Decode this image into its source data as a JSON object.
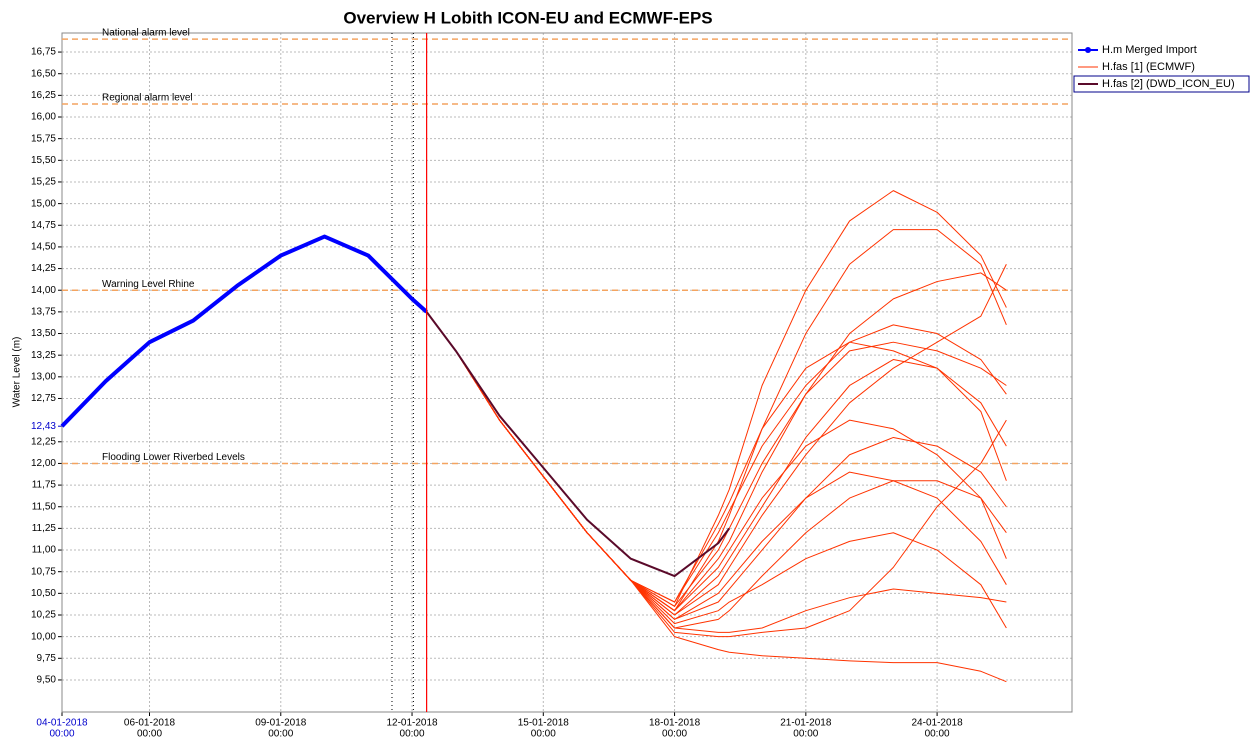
{
  "chart_data": {
    "type": "line",
    "title": "Overview H Lobith ICON-EU and ECMWF-EPS",
    "y_label": "Water Level (m)",
    "x": [
      "2018-01-04T00:00",
      "2018-01-05T00:00",
      "2018-01-06T00:00",
      "2018-01-07T00:00",
      "2018-01-08T00:00",
      "2018-01-09T00:00",
      "2018-01-10T00:00",
      "2018-01-11T00:00",
      "2018-01-12T00:00",
      "2018-01-12T08:00",
      "2018-01-13T00:00",
      "2018-01-14T00:00",
      "2018-01-15T00:00",
      "2018-01-16T00:00",
      "2018-01-17T00:00",
      "2018-01-18T00:00",
      "2018-01-19T00:00",
      "2018-01-19T06:00",
      "2018-01-20T00:00",
      "2018-01-21T00:00",
      "2018-01-22T00:00",
      "2018-01-23T00:00",
      "2018-01-24T00:00",
      "2018-01-25T00:00",
      "2018-01-25T14:00"
    ],
    "series": [
      {
        "name": "H.m Merged Import",
        "color": "#0000ff",
        "values": [
          12.43,
          12.95,
          13.4,
          13.65,
          14.05,
          14.4,
          14.62,
          14.4,
          13.9,
          13.75,
          null,
          null,
          null,
          null,
          null,
          null,
          null,
          null,
          null,
          null,
          null,
          null,
          null,
          null,
          null
        ]
      },
      {
        "name": "H.fas [1]  (ECMWF)",
        "color": "#ff3300",
        "members": [
          [
            null,
            null,
            null,
            null,
            null,
            null,
            null,
            null,
            null,
            13.75,
            13.3,
            12.5,
            11.85,
            11.2,
            10.65,
            10.3,
            10.9,
            11.1,
            11.9,
            12.8,
            13.3,
            13.4,
            13.3,
            13.1,
            12.9
          ],
          [
            null,
            null,
            null,
            null,
            null,
            null,
            null,
            null,
            null,
            13.75,
            13.3,
            12.5,
            11.85,
            11.2,
            10.65,
            10.35,
            11.4,
            11.7,
            12.9,
            14.0,
            14.8,
            15.15,
            14.9,
            14.4,
            13.8
          ],
          [
            null,
            null,
            null,
            null,
            null,
            null,
            null,
            null,
            null,
            13.75,
            13.3,
            12.5,
            11.85,
            11.2,
            10.65,
            10.3,
            11.1,
            11.4,
            12.4,
            13.5,
            14.3,
            14.7,
            14.7,
            14.3,
            13.6
          ],
          [
            null,
            null,
            null,
            null,
            null,
            null,
            null,
            null,
            null,
            13.75,
            13.3,
            12.5,
            11.85,
            11.2,
            10.65,
            10.0,
            9.85,
            9.82,
            9.78,
            9.75,
            9.72,
            9.7,
            9.7,
            9.6,
            9.48
          ],
          [
            null,
            null,
            null,
            null,
            null,
            null,
            null,
            null,
            null,
            13.75,
            13.3,
            12.5,
            11.85,
            11.2,
            10.65,
            10.1,
            10.05,
            10.05,
            10.1,
            10.3,
            10.45,
            10.55,
            10.5,
            10.45,
            10.4
          ],
          [
            null,
            null,
            null,
            null,
            null,
            null,
            null,
            null,
            null,
            13.75,
            13.3,
            12.5,
            11.85,
            11.2,
            10.65,
            10.2,
            10.4,
            10.55,
            11.0,
            11.6,
            12.1,
            12.3,
            12.2,
            11.9,
            11.5
          ],
          [
            null,
            null,
            null,
            null,
            null,
            null,
            null,
            null,
            null,
            13.75,
            13.3,
            12.5,
            11.85,
            11.2,
            10.65,
            10.4,
            11.2,
            11.45,
            12.2,
            12.9,
            13.4,
            13.6,
            13.5,
            13.2,
            12.8
          ],
          [
            null,
            null,
            null,
            null,
            null,
            null,
            null,
            null,
            null,
            13.75,
            13.3,
            12.5,
            11.85,
            11.2,
            10.65,
            10.1,
            10.2,
            10.3,
            10.7,
            11.2,
            11.6,
            11.8,
            11.8,
            11.6,
            11.2
          ],
          [
            null,
            null,
            null,
            null,
            null,
            null,
            null,
            null,
            null,
            13.75,
            13.3,
            12.5,
            11.85,
            11.2,
            10.65,
            10.25,
            10.6,
            10.8,
            11.4,
            12.1,
            12.7,
            13.1,
            13.4,
            13.7,
            14.3
          ],
          [
            null,
            null,
            null,
            null,
            null,
            null,
            null,
            null,
            null,
            13.75,
            13.3,
            12.5,
            11.85,
            11.2,
            10.65,
            10.05,
            10.0,
            10.0,
            10.05,
            10.1,
            10.3,
            10.8,
            11.5,
            12.0,
            12.5
          ],
          [
            null,
            null,
            null,
            null,
            null,
            null,
            null,
            null,
            null,
            13.75,
            13.3,
            12.5,
            11.85,
            11.2,
            10.65,
            10.3,
            10.8,
            11.0,
            11.6,
            12.2,
            12.5,
            12.4,
            12.1,
            11.6,
            10.9
          ],
          [
            null,
            null,
            null,
            null,
            null,
            null,
            null,
            null,
            null,
            13.75,
            13.3,
            12.5,
            11.85,
            11.2,
            10.65,
            10.15,
            10.3,
            10.4,
            10.6,
            10.9,
            11.1,
            11.2,
            11.0,
            10.6,
            10.1
          ],
          [
            null,
            null,
            null,
            null,
            null,
            null,
            null,
            null,
            null,
            13.75,
            13.3,
            12.5,
            11.85,
            11.2,
            10.65,
            10.35,
            11.0,
            11.25,
            12.0,
            12.8,
            13.5,
            13.9,
            14.1,
            14.2,
            14.0
          ],
          [
            null,
            null,
            null,
            null,
            null,
            null,
            null,
            null,
            null,
            13.75,
            13.3,
            12.5,
            11.85,
            11.2,
            10.65,
            10.2,
            10.5,
            10.65,
            11.1,
            11.6,
            11.9,
            11.8,
            11.6,
            11.1,
            10.6
          ],
          [
            null,
            null,
            null,
            null,
            null,
            null,
            null,
            null,
            null,
            13.75,
            13.3,
            12.5,
            11.85,
            11.2,
            10.65,
            10.4,
            11.3,
            11.55,
            12.4,
            13.1,
            13.4,
            13.3,
            13.1,
            12.7,
            12.2
          ],
          [
            null,
            null,
            null,
            null,
            null,
            null,
            null,
            null,
            null,
            13.75,
            13.3,
            12.5,
            11.85,
            11.2,
            10.65,
            10.25,
            10.7,
            10.9,
            11.5,
            12.3,
            12.9,
            13.2,
            13.1,
            12.6,
            11.8
          ]
        ]
      },
      {
        "name": "H.fas [2] (DWD_ICON_EU)",
        "color": "#5a0a2a",
        "values": [
          null,
          null,
          null,
          null,
          null,
          null,
          null,
          null,
          null,
          13.75,
          13.3,
          12.55,
          11.95,
          11.35,
          10.9,
          10.7,
          11.08,
          11.25,
          null,
          null,
          null,
          null,
          null,
          null,
          null
        ]
      }
    ],
    "xlim": [
      "2018-01-04T00:00",
      "2018-01-27T02:00"
    ],
    "xticks": [
      {
        "value": "2018-01-04T00:00",
        "label": "04-01-2018",
        "time": "00:00"
      },
      {
        "value": "2018-01-06T00:00",
        "label": "06-01-2018",
        "time": "00:00"
      },
      {
        "value": "2018-01-09T00:00",
        "label": "09-01-2018",
        "time": "00:00"
      },
      {
        "value": "2018-01-12T00:00",
        "label": "12-01-2018",
        "time": "00:00"
      },
      {
        "value": "2018-01-15T00:00",
        "label": "15-01-2018",
        "time": "00:00"
      },
      {
        "value": "2018-01-18T00:00",
        "label": "18-01-2018",
        "time": "00:00"
      },
      {
        "value": "2018-01-21T00:00",
        "label": "21-01-2018",
        "time": "00:00"
      },
      {
        "value": "2018-01-24T00:00",
        "label": "24-01-2018",
        "time": "00:00"
      }
    ],
    "ylim": [
      9.13,
      16.97
    ],
    "yticks": [
      {
        "value": 9.5,
        "label": "9,50"
      },
      {
        "value": 9.75,
        "label": "9,75"
      },
      {
        "value": 10,
        "label": "10,00"
      },
      {
        "value": 10.25,
        "label": "10,25"
      },
      {
        "value": 10.5,
        "label": "10,50"
      },
      {
        "value": 10.75,
        "label": "10,75"
      },
      {
        "value": 11,
        "label": "11,00"
      },
      {
        "value": 11.25,
        "label": "11,25"
      },
      {
        "value": 11.5,
        "label": "11,50"
      },
      {
        "value": 11.75,
        "label": "11,75"
      },
      {
        "value": 12,
        "label": "12,00"
      },
      {
        "value": 12.25,
        "label": "12,25"
      },
      {
        "value": 12.75,
        "label": "12,75"
      },
      {
        "value": 13,
        "label": "13,00"
      },
      {
        "value": 13.25,
        "label": "13,25"
      },
      {
        "value": 13.5,
        "label": "13,50"
      },
      {
        "value": 13.75,
        "label": "13,75"
      },
      {
        "value": 14,
        "label": "14,00"
      },
      {
        "value": 14.25,
        "label": "14,25"
      },
      {
        "value": 14.5,
        "label": "14,50"
      },
      {
        "value": 14.75,
        "label": "14,75"
      },
      {
        "value": 15,
        "label": "15,00"
      },
      {
        "value": 15.25,
        "label": "15,25"
      },
      {
        "value": 15.5,
        "label": "15,50"
      },
      {
        "value": 15.75,
        "label": "15,75"
      },
      {
        "value": 16,
        "label": "16,00"
      },
      {
        "value": 16.25,
        "label": "16,25"
      },
      {
        "value": 16.5,
        "label": "16,50"
      },
      {
        "value": 16.75,
        "label": "16,75"
      }
    ],
    "current_value": {
      "value": 12.43,
      "label": "12,43",
      "color": "#0000cc"
    },
    "thresholds": [
      {
        "label": "National alarm level",
        "value": 16.9
      },
      {
        "label": "Regional alarm level",
        "value": 16.15
      },
      {
        "label": "Warning Level Rhine",
        "value": 14.0
      },
      {
        "label": "Flooding Lower Riverbed Levels",
        "value": 12.0
      }
    ],
    "threshold_color": "#f4a460",
    "forecast_time": {
      "value": "2018-01-12T08:00",
      "color": "#ff0000"
    },
    "markers": [
      "2018-01-11T13:00",
      "2018-01-12T00:45"
    ],
    "grid": true,
    "legend": "right"
  }
}
